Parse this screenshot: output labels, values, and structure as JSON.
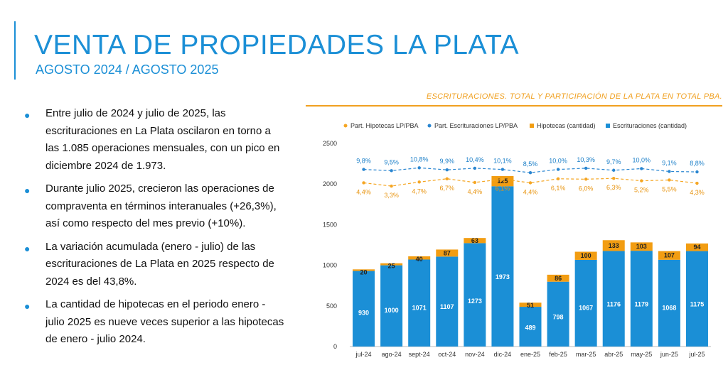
{
  "header": {
    "title": "VENTA DE PROPIEDADES LA PLATA",
    "subtitle": "AGOSTO 2024 / AGOSTO 2025"
  },
  "bullets": [
    "Entre julio de 2024 y julio de 2025, las escrituraciones en La Plata oscilaron en torno a las 1.085 operaciones mensuales, con un pico en diciembre 2024 de 1.973.",
    "Durante julio 2025, crecieron las operaciones de compraventa en términos interanuales (+26,3%), así como respecto del mes previo (+10%).",
    "La variación acumulada (enero - julio) de las escrituraciones de La Plata en 2025 respecto de 2024 es del 43,8%.",
    "La cantidad de hipotecas en el periodo enero - julio 2025 es nueve veces superior a las hipotecas de enero - julio 2024."
  ],
  "chart_data": {
    "type": "bar",
    "title": "ESCRITURACIONES. TOTAL Y PARTICIPACIÓN DE LA PLATA EN TOTAL PBA.",
    "categories": [
      "jul-24",
      "ago-24",
      "sept-24",
      "oct-24",
      "nov-24",
      "dic-24",
      "ene-25",
      "feb-25",
      "mar-25",
      "abr-25",
      "may-25",
      "jun-25",
      "jul-25"
    ],
    "ylim": [
      0,
      2500
    ],
    "yticks": [
      "0",
      "500",
      "1000",
      "1500",
      "2000",
      "2500"
    ],
    "legend": [
      "Part. Hipotecas LP/PBA",
      "Part. Escrituraciones LP/PBA",
      "Hipotecas (cantidad)",
      "Escrituraciones (cantidad)"
    ],
    "escrituraciones": [
      930,
      1000,
      1071,
      1107,
      1273,
      1973,
      489,
      798,
      1067,
      1176,
      1179,
      1068,
      1175
    ],
    "hipotecas": [
      20,
      25,
      40,
      87,
      63,
      125,
      51,
      86,
      100,
      133,
      103,
      107,
      94
    ],
    "part_escrituraciones_labels": [
      "9,8%",
      "9,5%",
      "10,8%",
      "9,9%",
      "10,4%",
      "10,1%",
      "8,5%",
      "10,0%",
      "10,3%",
      "9,7%",
      "10,0%",
      "9,1%",
      "8,8%"
    ],
    "part_escrituraciones_level": [
      2180,
      2165,
      2200,
      2175,
      2195,
      2180,
      2140,
      2180,
      2195,
      2170,
      2190,
      2155,
      2150
    ],
    "part_hipotecas_labels": [
      "4,4%",
      "3,3%",
      "4,7%",
      "6,7%",
      "4,4%",
      "6,1%",
      "4,4%",
      "6,1%",
      "6,0%",
      "6,3%",
      "5,2%",
      "5,5%",
      "4,3%"
    ],
    "part_hipotecas_level": [
      2015,
      1975,
      2025,
      2065,
      2020,
      2060,
      2015,
      2065,
      2060,
      2070,
      2040,
      2050,
      2010
    ],
    "colors": {
      "escrituraciones": "#1b8fd6",
      "hipotecas": "#f29d12",
      "part_escrituraciones": "#2a86d1",
      "part_hipotecas": "#f5a623",
      "accent": "#1b8fd6"
    }
  }
}
